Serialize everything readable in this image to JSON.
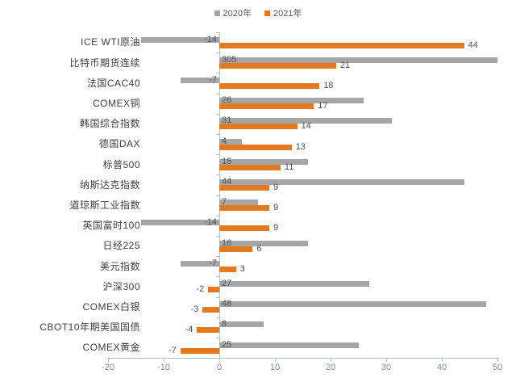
{
  "chart_data": {
    "type": "bar",
    "orientation": "horizontal",
    "title": "",
    "categories": [
      "ICE WTI原油",
      "比特币期货连续",
      "法国CAC40",
      "COMEX铜",
      "韩国综合指数",
      "德国DAX",
      "标普500",
      "纳斯达克指数",
      "道琼斯工业指数",
      "英国富时100",
      "日经225",
      "美元指数",
      "沪深300",
      "COMEX白银",
      "CBOT10年期美国国债",
      "COMEX黄金"
    ],
    "series": [
      {
        "name": "2020年",
        "color": "#A6A6A6",
        "label_position": "inside-base",
        "values": [
          -14,
          305,
          -7,
          26,
          31,
          4,
          16,
          44,
          7,
          -14,
          16,
          -7,
          27,
          48,
          8,
          25
        ]
      },
      {
        "name": "2021年",
        "color": "#E4791F",
        "label_position": "outside-end",
        "values": [
          44,
          21,
          18,
          17,
          14,
          13,
          11,
          9,
          9,
          9,
          6,
          3,
          -2,
          -3,
          -4,
          -7
        ]
      }
    ],
    "xlim": [
      -20,
      50
    ],
    "x_ticks": [
      "-20",
      "-10",
      "0",
      "10",
      "20",
      "30",
      "40",
      "50"
    ],
    "legend_position": "top-center",
    "grid": false,
    "bars_clipped_at_xmax": [
      "比特币期货连续 2020年 = 305"
    ],
    "colors": {
      "axis": "#AEC6AE",
      "tick_label": "#7D967D",
      "value_label": "#4D5359"
    }
  }
}
